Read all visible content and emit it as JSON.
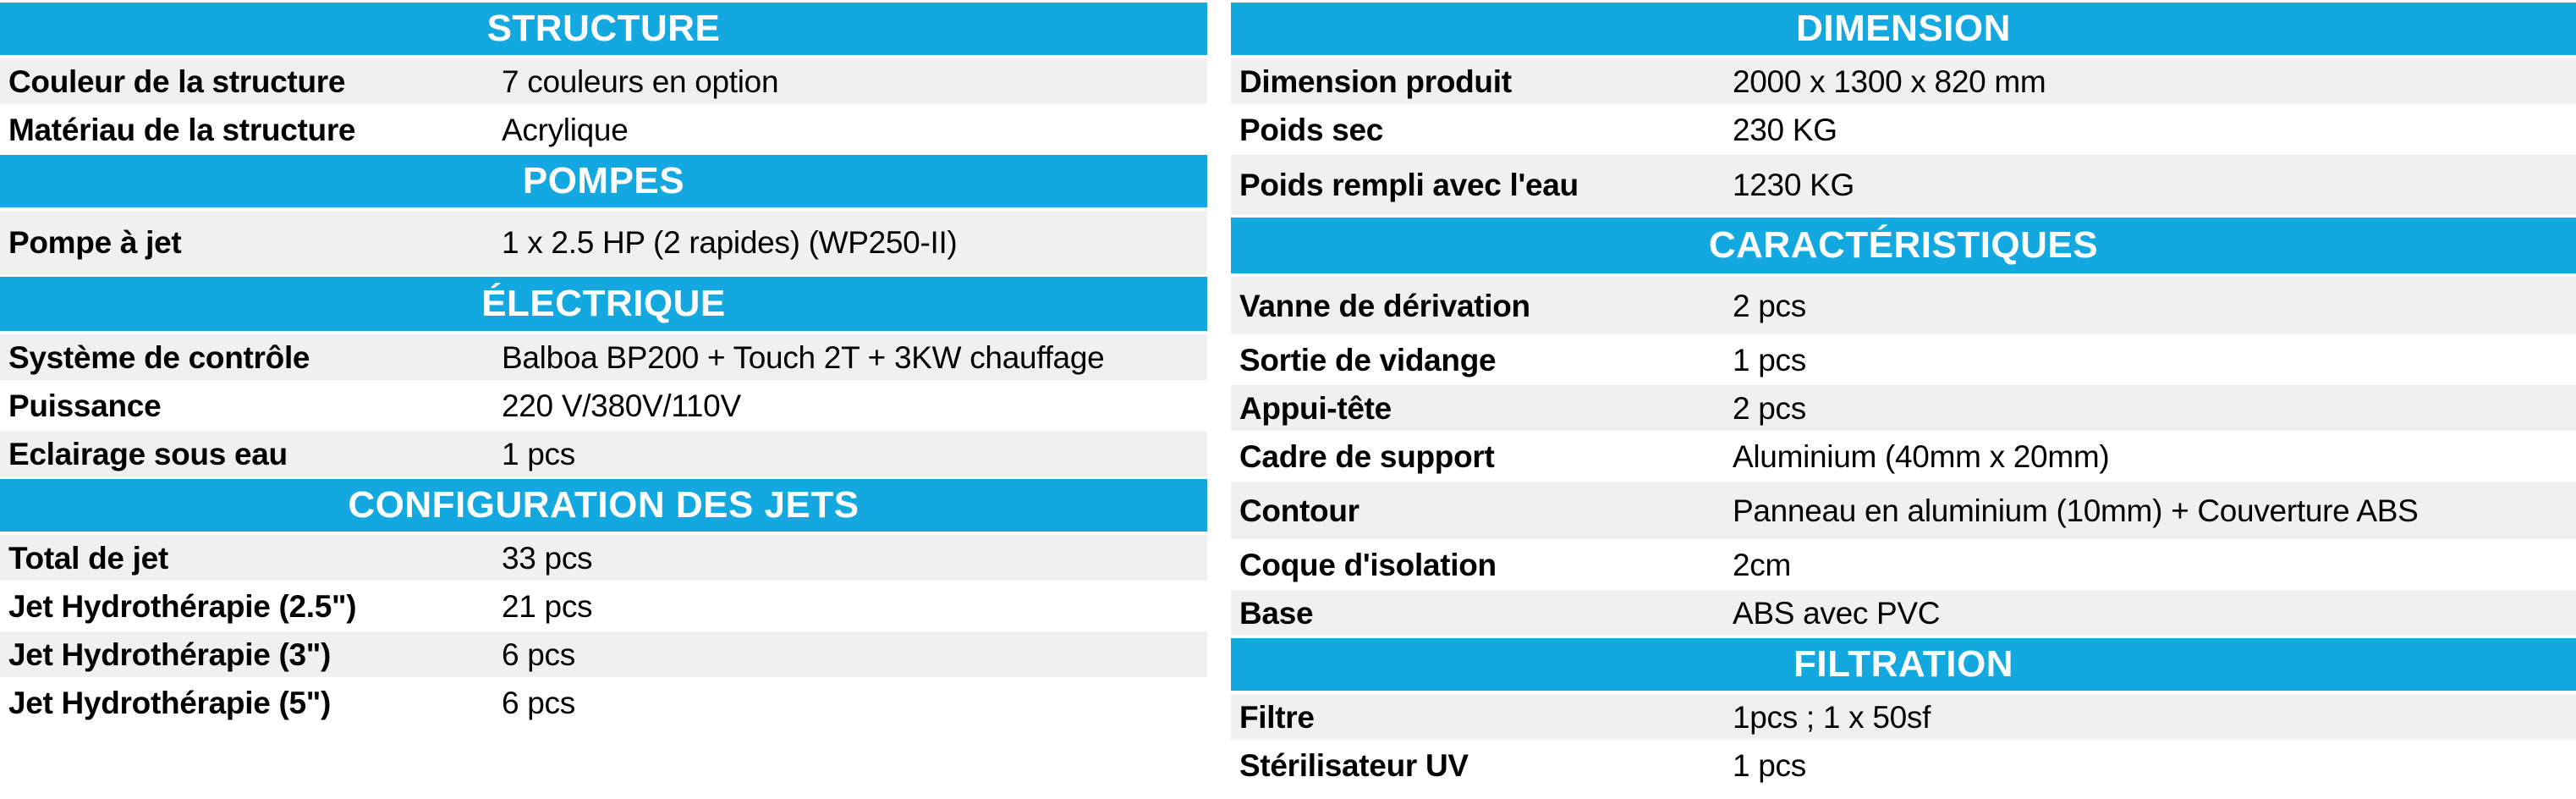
{
  "colors": {
    "header_bg": "#14A8E0",
    "header_text": "#FFFFFF",
    "row_alt_bg": "#F0F0F0",
    "row_bg": "#FFFFFF",
    "text": "#000000"
  },
  "tables": {
    "left": [
      {
        "title": "STRUCTURE",
        "rows": [
          {
            "label": "Couleur de la structure",
            "value": "7 couleurs en option"
          },
          {
            "label": "Matériau de la structure",
            "value": "Acrylique"
          }
        ]
      },
      {
        "title": "POMPES",
        "rows": [
          {
            "label": "Pompe à jet",
            "value": "1 x 2.5 HP (2 rapides) (WP250-II)"
          }
        ]
      },
      {
        "title": "ÉLECTRIQUE",
        "rows": [
          {
            "label": "Système de contrôle",
            "value": "Balboa BP200 + Touch 2T + 3KW chauffage"
          },
          {
            "label": "Puissance",
            "value": "220 V/380V/110V"
          },
          {
            "label": "Eclairage sous eau",
            "value": "1 pcs"
          }
        ]
      },
      {
        "title": "CONFIGURATION DES JETS",
        "rows": [
          {
            "label": "Total de jet",
            "value": "33 pcs"
          },
          {
            "label": "Jet Hydrothérapie (2.5\")",
            "value": "21 pcs"
          },
          {
            "label": "Jet Hydrothérapie (3\")",
            "value": "6 pcs"
          },
          {
            "label": "Jet Hydrothérapie (5\")",
            "value": "6 pcs"
          }
        ]
      }
    ],
    "right": [
      {
        "title": "DIMENSION",
        "rows": [
          {
            "label": "Dimension produit",
            "value": "2000 x 1300 x 820 mm"
          },
          {
            "label": "Poids sec",
            "value": "230 KG"
          },
          {
            "label": "Poids rempli avec l'eau",
            "value": "1230 KG"
          }
        ]
      },
      {
        "title": "CARACTÉRISTIQUES",
        "rows": [
          {
            "label": "Vanne de dérivation",
            "value": "2 pcs"
          },
          {
            "label": "Sortie de vidange",
            "value": "1 pcs"
          },
          {
            "label": "Appui-tête",
            "value": "2 pcs"
          },
          {
            "label": "Cadre de support",
            "value": "Aluminium (40mm x 20mm)"
          },
          {
            "label": "Contour",
            "value": "Panneau en aluminium (10mm) + Couverture ABS"
          },
          {
            "label": "Coque d'isolation",
            "value": "2cm"
          },
          {
            "label": "Base",
            "value": "ABS avec PVC"
          }
        ]
      },
      {
        "title": "FILTRATION",
        "rows": [
          {
            "label": "Filtre",
            "value": "1pcs ; 1 x 50sf"
          },
          {
            "label": "Stérilisateur UV",
            "value": "1 pcs"
          }
        ]
      }
    ]
  }
}
